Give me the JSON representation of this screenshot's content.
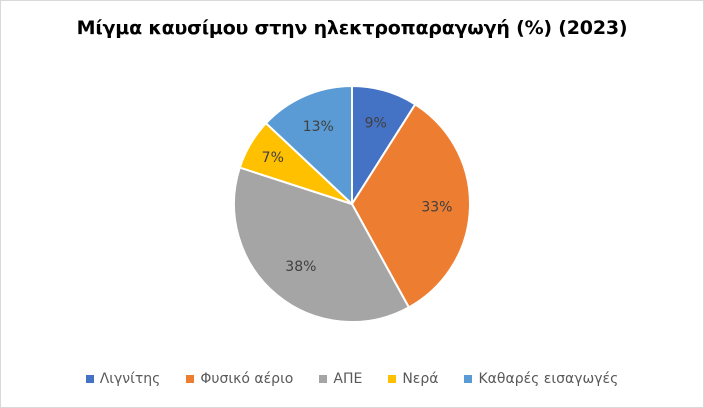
{
  "chart_data": {
    "type": "pie",
    "title": "Μίγμα καυσίμου στην ηλεκτροπαραγωγή (%) (2023)",
    "categories": [
      "Λιγνίτης",
      "Φυσικό αέριο",
      "ΑΠΕ",
      "Νερά",
      "Καθαρές εισαγωγές"
    ],
    "values": [
      9,
      33,
      38,
      7,
      13
    ],
    "data_labels": [
      "9%",
      "33%",
      "38%",
      "7%",
      "13%"
    ],
    "colors": [
      "#4472C4",
      "#ED7D31",
      "#A5A5A5",
      "#FFC000",
      "#5B9BD5"
    ],
    "start_angle": "12 o'clock, clockwise",
    "legend_position": "bottom",
    "unit": "%"
  },
  "legend": {
    "items": [
      {
        "label": "Λιγνίτης",
        "color": "#4472C4"
      },
      {
        "label": "Φυσικό αέριο",
        "color": "#ED7D31"
      },
      {
        "label": "ΑΠΕ",
        "color": "#A5A5A5"
      },
      {
        "label": "Νερά",
        "color": "#FFC000"
      },
      {
        "label": "Καθαρές εισαγωγές",
        "color": "#5B9BD5"
      }
    ]
  }
}
